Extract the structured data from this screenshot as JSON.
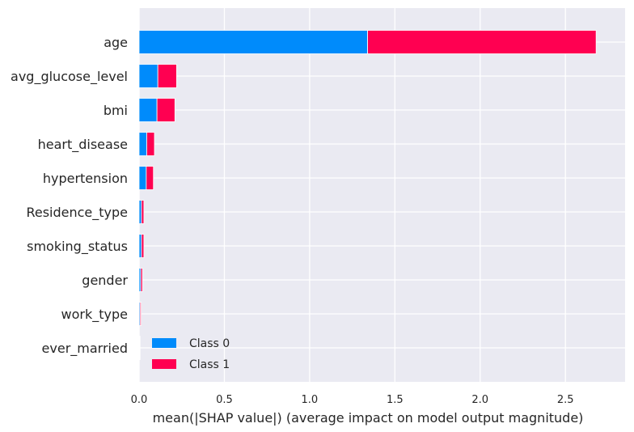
{
  "chart_data": {
    "type": "bar",
    "stacked": true,
    "orientation": "horizontal",
    "categories": [
      "age",
      "avg_glucose_level",
      "bmi",
      "heart_disease",
      "hypertension",
      "Residence_type",
      "smoking_status",
      "gender",
      "work_type",
      "ever_married"
    ],
    "series": [
      {
        "name": "Class 0",
        "color": "#008bfb",
        "values": [
          1.34,
          0.11,
          0.105,
          0.045,
          0.042,
          0.014,
          0.014,
          0.01,
          0.006,
          0.003
        ]
      },
      {
        "name": "Class 1",
        "color": "#ff0051",
        "values": [
          1.34,
          0.11,
          0.105,
          0.045,
          0.042,
          0.014,
          0.014,
          0.01,
          0.006,
          0.003
        ]
      }
    ],
    "xlabel": "mean(|SHAP value|) (average impact on model output magnitude)",
    "xlim": [
      0,
      2.85
    ],
    "xticks": [
      "0.0",
      "0.5",
      "1.0",
      "1.5",
      "2.0",
      "2.5"
    ],
    "xtick_values": [
      0,
      0.5,
      1.0,
      1.5,
      2.0,
      2.5
    ],
    "grid": true,
    "legend_position": "lower-left",
    "background": "#eaeaf2"
  }
}
